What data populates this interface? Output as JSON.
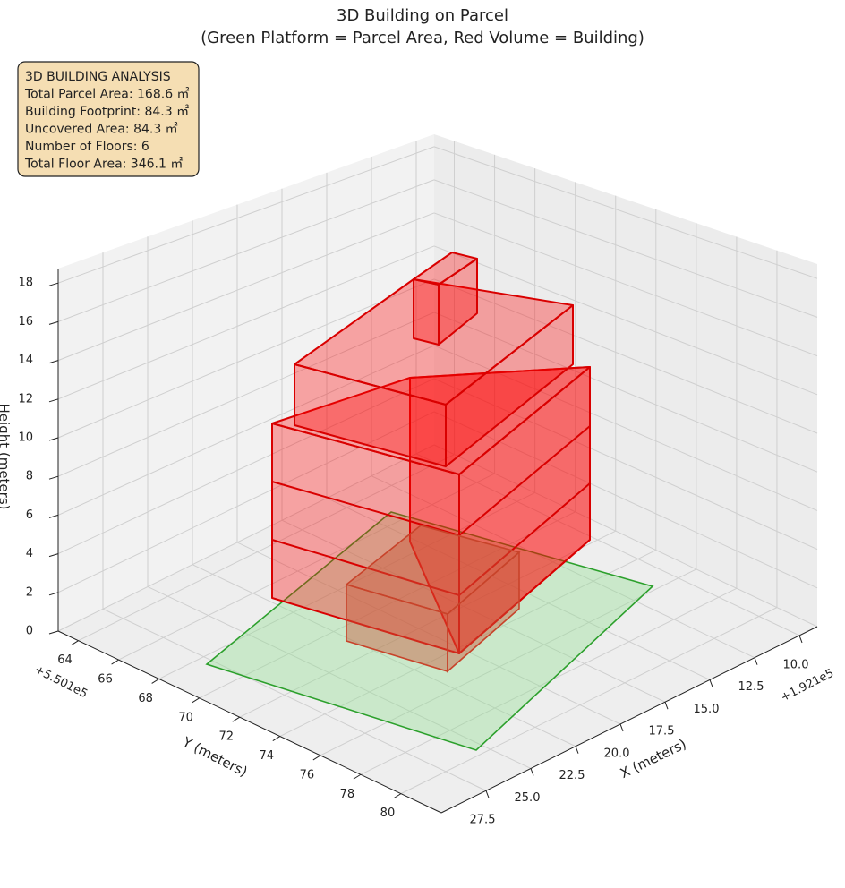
{
  "chart_data": {
    "type": "3d",
    "title": "3D Building on Parcel",
    "subtitle": "(Green Platform = Parcel Area, Red Volume = Building)",
    "info_box": [
      "3D BUILDING ANALYSIS",
      "Total Parcel Area: 168.6 ㎡",
      "Building Footprint: 84.3 ㎡",
      "Uncovered Area: 84.3 ㎡",
      "Number of Floors: 6",
      "Total Floor Area: 346.1 ㎡"
    ],
    "xlabel": "X (meters)",
    "ylabel": "Y (meters)",
    "zlabel": "Height (meters)",
    "x_offset": "+1.921e5",
    "y_offset": "+5.501e5",
    "xlim": [
      9,
      30
    ],
    "ylim": [
      63,
      82
    ],
    "zlim": [
      0,
      18.75
    ],
    "xticks": [
      {
        "value": 10,
        "label": "10.0"
      },
      12.5,
      {
        "value": 15,
        "label": "15.0"
      },
      17.5,
      {
        "value": 20,
        "label": "20.0"
      },
      22.5,
      {
        "value": 25,
        "label": "25.0"
      },
      27.5
    ],
    "yticks": [
      64,
      66,
      68,
      70,
      72,
      74,
      76,
      78,
      80
    ],
    "zticks": [
      0,
      2,
      4,
      6,
      8,
      10,
      12,
      14,
      16,
      18
    ],
    "grid": true
  }
}
